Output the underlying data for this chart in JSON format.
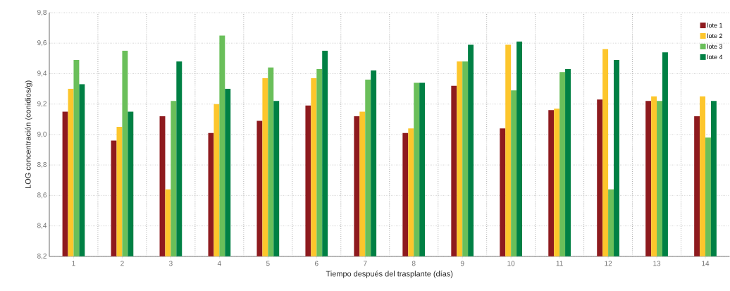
{
  "chart_data": {
    "type": "bar",
    "xlabel": "Tiempo después del trasplante (días)",
    "ylabel": "LOG concentración (conidios/g)",
    "categories": [
      "1",
      "2",
      "3",
      "4",
      "5",
      "6",
      "7",
      "8",
      "9",
      "10",
      "11",
      "12",
      "13",
      "14"
    ],
    "series": [
      {
        "name": "lote 1",
        "color": "#8e1a1e",
        "values": [
          9.15,
          8.96,
          9.12,
          9.01,
          9.09,
          9.19,
          9.12,
          9.01,
          9.32,
          9.04,
          9.16,
          9.23,
          9.22,
          9.12
        ]
      },
      {
        "name": "lote 2",
        "color": "#fdc62c",
        "values": [
          9.3,
          9.05,
          8.64,
          9.2,
          9.37,
          9.37,
          9.15,
          9.04,
          9.48,
          9.59,
          9.17,
          9.56,
          9.25,
          9.25
        ]
      },
      {
        "name": "lote 3",
        "color": "#6abf5a",
        "values": [
          9.49,
          9.55,
          9.22,
          9.65,
          9.44,
          9.43,
          9.36,
          9.34,
          9.48,
          9.29,
          9.41,
          8.64,
          9.22,
          8.98
        ]
      },
      {
        "name": "lote 4",
        "color": "#008044",
        "values": [
          9.33,
          9.15,
          9.48,
          9.3,
          9.22,
          9.55,
          9.42,
          9.34,
          9.59,
          9.61,
          9.43,
          9.49,
          9.54,
          9.22
        ]
      }
    ],
    "ylim": [
      8.2,
      9.8
    ],
    "yticks": [
      {
        "value": 8.2,
        "label": "8,2"
      },
      {
        "value": 8.4,
        "label": "8,4"
      },
      {
        "value": 8.6,
        "label": "8,6"
      },
      {
        "value": 8.8,
        "label": "8,8"
      },
      {
        "value": 9.0,
        "label": "9,0"
      },
      {
        "value": 9.2,
        "label": "9,2"
      },
      {
        "value": 9.4,
        "label": "9,4"
      },
      {
        "value": 9.6,
        "label": "9,6"
      },
      {
        "value": 9.8,
        "label": "9,8"
      }
    ],
    "grid": true,
    "legend": "top right"
  }
}
